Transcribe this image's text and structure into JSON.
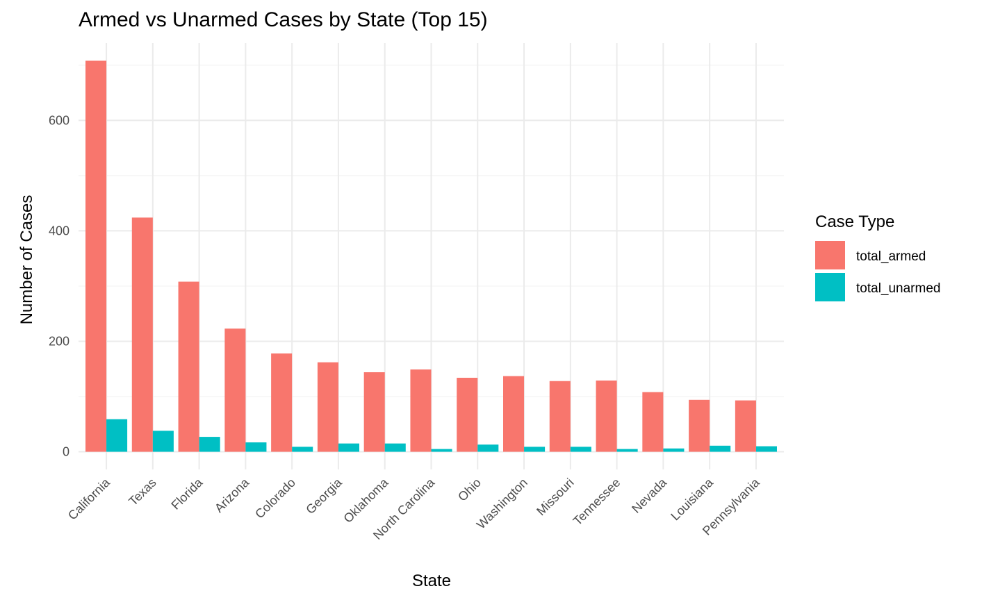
{
  "chart_data": {
    "type": "bar",
    "title": "Armed vs Unarmed Cases by State (Top 15)",
    "xlabel": "State",
    "ylabel": "Number of Cases",
    "categories": [
      "California",
      "Texas",
      "Florida",
      "Arizona",
      "Colorado",
      "Georgia",
      "Oklahoma",
      "North Carolina",
      "Ohio",
      "Washington",
      "Missouri",
      "Tennessee",
      "Nevada",
      "Louisiana",
      "Pennsylvania"
    ],
    "series": [
      {
        "name": "total_armed",
        "color": "#F8766D",
        "values": [
          708,
          424,
          308,
          223,
          178,
          162,
          144,
          149,
          134,
          137,
          128,
          129,
          108,
          94,
          93
        ]
      },
      {
        "name": "total_unarmed",
        "color": "#00BFC4",
        "values": [
          59,
          38,
          27,
          17,
          9,
          15,
          15,
          5,
          13,
          9,
          9,
          5,
          6,
          11,
          10
        ]
      }
    ],
    "ylim": [
      -32,
      740
    ],
    "yticks": [
      0,
      200,
      400,
      600
    ],
    "ytick_labels": [
      "0",
      "200",
      "400",
      "600"
    ],
    "grid": true,
    "legend": {
      "title": "Case Type",
      "position": "right"
    }
  }
}
